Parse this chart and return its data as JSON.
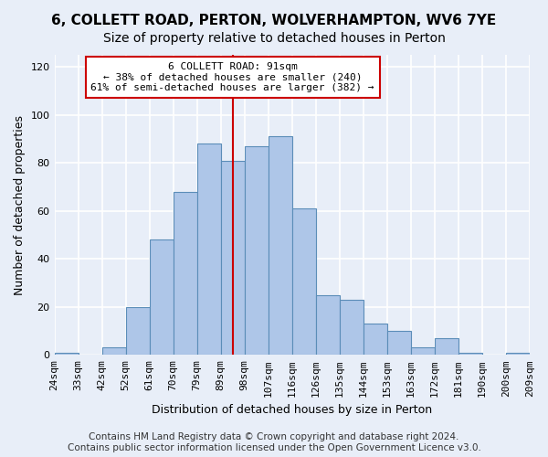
{
  "title_line1": "6, COLLETT ROAD, PERTON, WOLVERHAMPTON, WV6 7YE",
  "title_line2": "Size of property relative to detached houses in Perton",
  "xlabel": "Distribution of detached houses by size in Perton",
  "ylabel": "Number of detached properties",
  "bin_labels": [
    "24sqm",
    "33sqm",
    "42sqm",
    "52sqm",
    "61sqm",
    "70sqm",
    "79sqm",
    "89sqm",
    "98sqm",
    "107sqm",
    "116sqm",
    "126sqm",
    "135sqm",
    "144sqm",
    "153sqm",
    "163sqm",
    "172sqm",
    "181sqm",
    "190sqm",
    "200sqm",
    "209sqm"
  ],
  "bar_heights": [
    1,
    0,
    3,
    20,
    48,
    68,
    88,
    81,
    87,
    91,
    61,
    25,
    23,
    13,
    10,
    3,
    7,
    1,
    0,
    1
  ],
  "bar_color": "#aec6e8",
  "bar_edge_color": "#5b8db8",
  "vline_color": "#cc0000",
  "annotation_text": "6 COLLETT ROAD: 91sqm\n← 38% of detached houses are smaller (240)\n61% of semi-detached houses are larger (382) →",
  "annotation_box_color": "white",
  "annotation_box_edge_color": "#cc0000",
  "ylim": [
    0,
    125
  ],
  "yticks": [
    0,
    20,
    40,
    60,
    80,
    100,
    120
  ],
  "footer_line1": "Contains HM Land Registry data © Crown copyright and database right 2024.",
  "footer_line2": "Contains public sector information licensed under the Open Government Licence v3.0.",
  "background_color": "#e8eef8",
  "grid_color": "#ffffff",
  "title1_fontsize": 11,
  "title2_fontsize": 10,
  "xlabel_fontsize": 9,
  "ylabel_fontsize": 9,
  "tick_fontsize": 8,
  "footer_fontsize": 7.5
}
